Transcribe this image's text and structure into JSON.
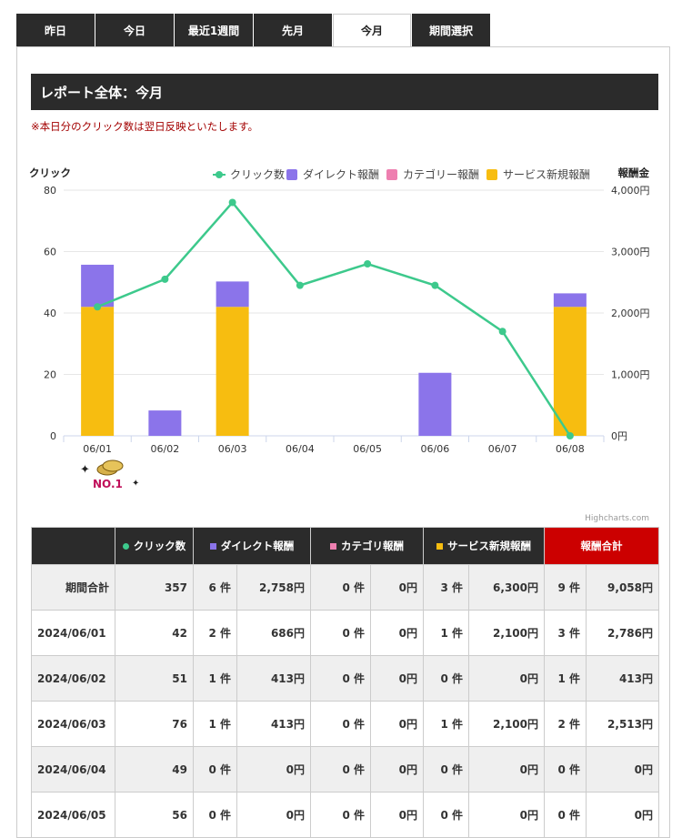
{
  "tabs": [
    {
      "label": "昨日",
      "active": false
    },
    {
      "label": "今日",
      "active": false
    },
    {
      "label": "最近1週間",
      "active": false
    },
    {
      "label": "先月",
      "active": false
    },
    {
      "label": "今月",
      "active": true
    },
    {
      "label": "期間選択",
      "active": false
    }
  ],
  "report": {
    "title": "レポート全体：今月",
    "note": "※本日分のクリック数は翌日反映といたします。"
  },
  "chart_data": {
    "type": "bar",
    "categories": [
      "06/01",
      "06/02",
      "06/03",
      "06/04",
      "06/05",
      "06/06",
      "06/07",
      "06/08"
    ],
    "ylabel_left": "クリック",
    "ylabel_right": "報酬金",
    "left_ticks": [
      "0",
      "20",
      "40",
      "60",
      "80"
    ],
    "right_ticks": [
      "0円",
      "1,000円",
      "2,000円",
      "3,000円",
      "4,000円"
    ],
    "ylim_left": [
      0,
      80
    ],
    "ylim_right": [
      0,
      4000
    ],
    "legend_position": "top-right",
    "grid": true,
    "series": [
      {
        "name": "クリック数",
        "kind": "line",
        "axis": "left",
        "color": "#3dc98c",
        "values": [
          42,
          51,
          76,
          49,
          56,
          49,
          34,
          0
        ]
      },
      {
        "name": "ダイレクト報酬",
        "kind": "bar",
        "axis": "right",
        "color": "#8b74ea",
        "values": [
          686,
          413,
          413,
          0,
          0,
          1026,
          0,
          220
        ]
      },
      {
        "name": "カテゴリー報酬",
        "kind": "bar",
        "axis": "right",
        "color": "#ee7fb0",
        "values": [
          0,
          0,
          0,
          0,
          0,
          0,
          0,
          0
        ]
      },
      {
        "name": "サービス新規報酬",
        "kind": "bar",
        "axis": "right",
        "color": "#f7bd10",
        "values": [
          2100,
          0,
          2100,
          0,
          0,
          0,
          0,
          2100
        ]
      }
    ],
    "badge": "NO.1",
    "credits": "Highcharts.com"
  },
  "table": {
    "headers": {
      "blank": "",
      "clicks": "クリック数",
      "direct": "ダイレクト報酬",
      "category": "カテゴリ報酬",
      "service": "サービス新規報酬",
      "total": "報酬合計"
    },
    "header_colors": {
      "clicks": "#3dc98c",
      "direct": "#8b74ea",
      "category": "#ee7fb0",
      "service": "#f7bd10"
    },
    "rows": [
      {
        "label": "期間合計",
        "clicks": "357",
        "direct_count": "6 件",
        "direct_amount": "2,758円",
        "category_count": "0 件",
        "category_amount": "0円",
        "service_count": "3 件",
        "service_amount": "6,300円",
        "total_count": "9 件",
        "total_amount": "9,058円"
      },
      {
        "label": "2024/06/01",
        "clicks": "42",
        "direct_count": "2 件",
        "direct_amount": "686円",
        "category_count": "0 件",
        "category_amount": "0円",
        "service_count": "1 件",
        "service_amount": "2,100円",
        "total_count": "3 件",
        "total_amount": "2,786円"
      },
      {
        "label": "2024/06/02",
        "clicks": "51",
        "direct_count": "1 件",
        "direct_amount": "413円",
        "category_count": "0 件",
        "category_amount": "0円",
        "service_count": "0 件",
        "service_amount": "0円",
        "total_count": "1 件",
        "total_amount": "413円"
      },
      {
        "label": "2024/06/03",
        "clicks": "76",
        "direct_count": "1 件",
        "direct_amount": "413円",
        "category_count": "0 件",
        "category_amount": "0円",
        "service_count": "1 件",
        "service_amount": "2,100円",
        "total_count": "2 件",
        "total_amount": "2,513円"
      },
      {
        "label": "2024/06/04",
        "clicks": "49",
        "direct_count": "0 件",
        "direct_amount": "0円",
        "category_count": "0 件",
        "category_amount": "0円",
        "service_count": "0 件",
        "service_amount": "0円",
        "total_count": "0 件",
        "total_amount": "0円"
      },
      {
        "label": "2024/06/05",
        "clicks": "56",
        "direct_count": "0 件",
        "direct_amount": "0円",
        "category_count": "0 件",
        "category_amount": "0円",
        "service_count": "0 件",
        "service_amount": "0円",
        "total_count": "0 件",
        "total_amount": "0円"
      }
    ]
  }
}
